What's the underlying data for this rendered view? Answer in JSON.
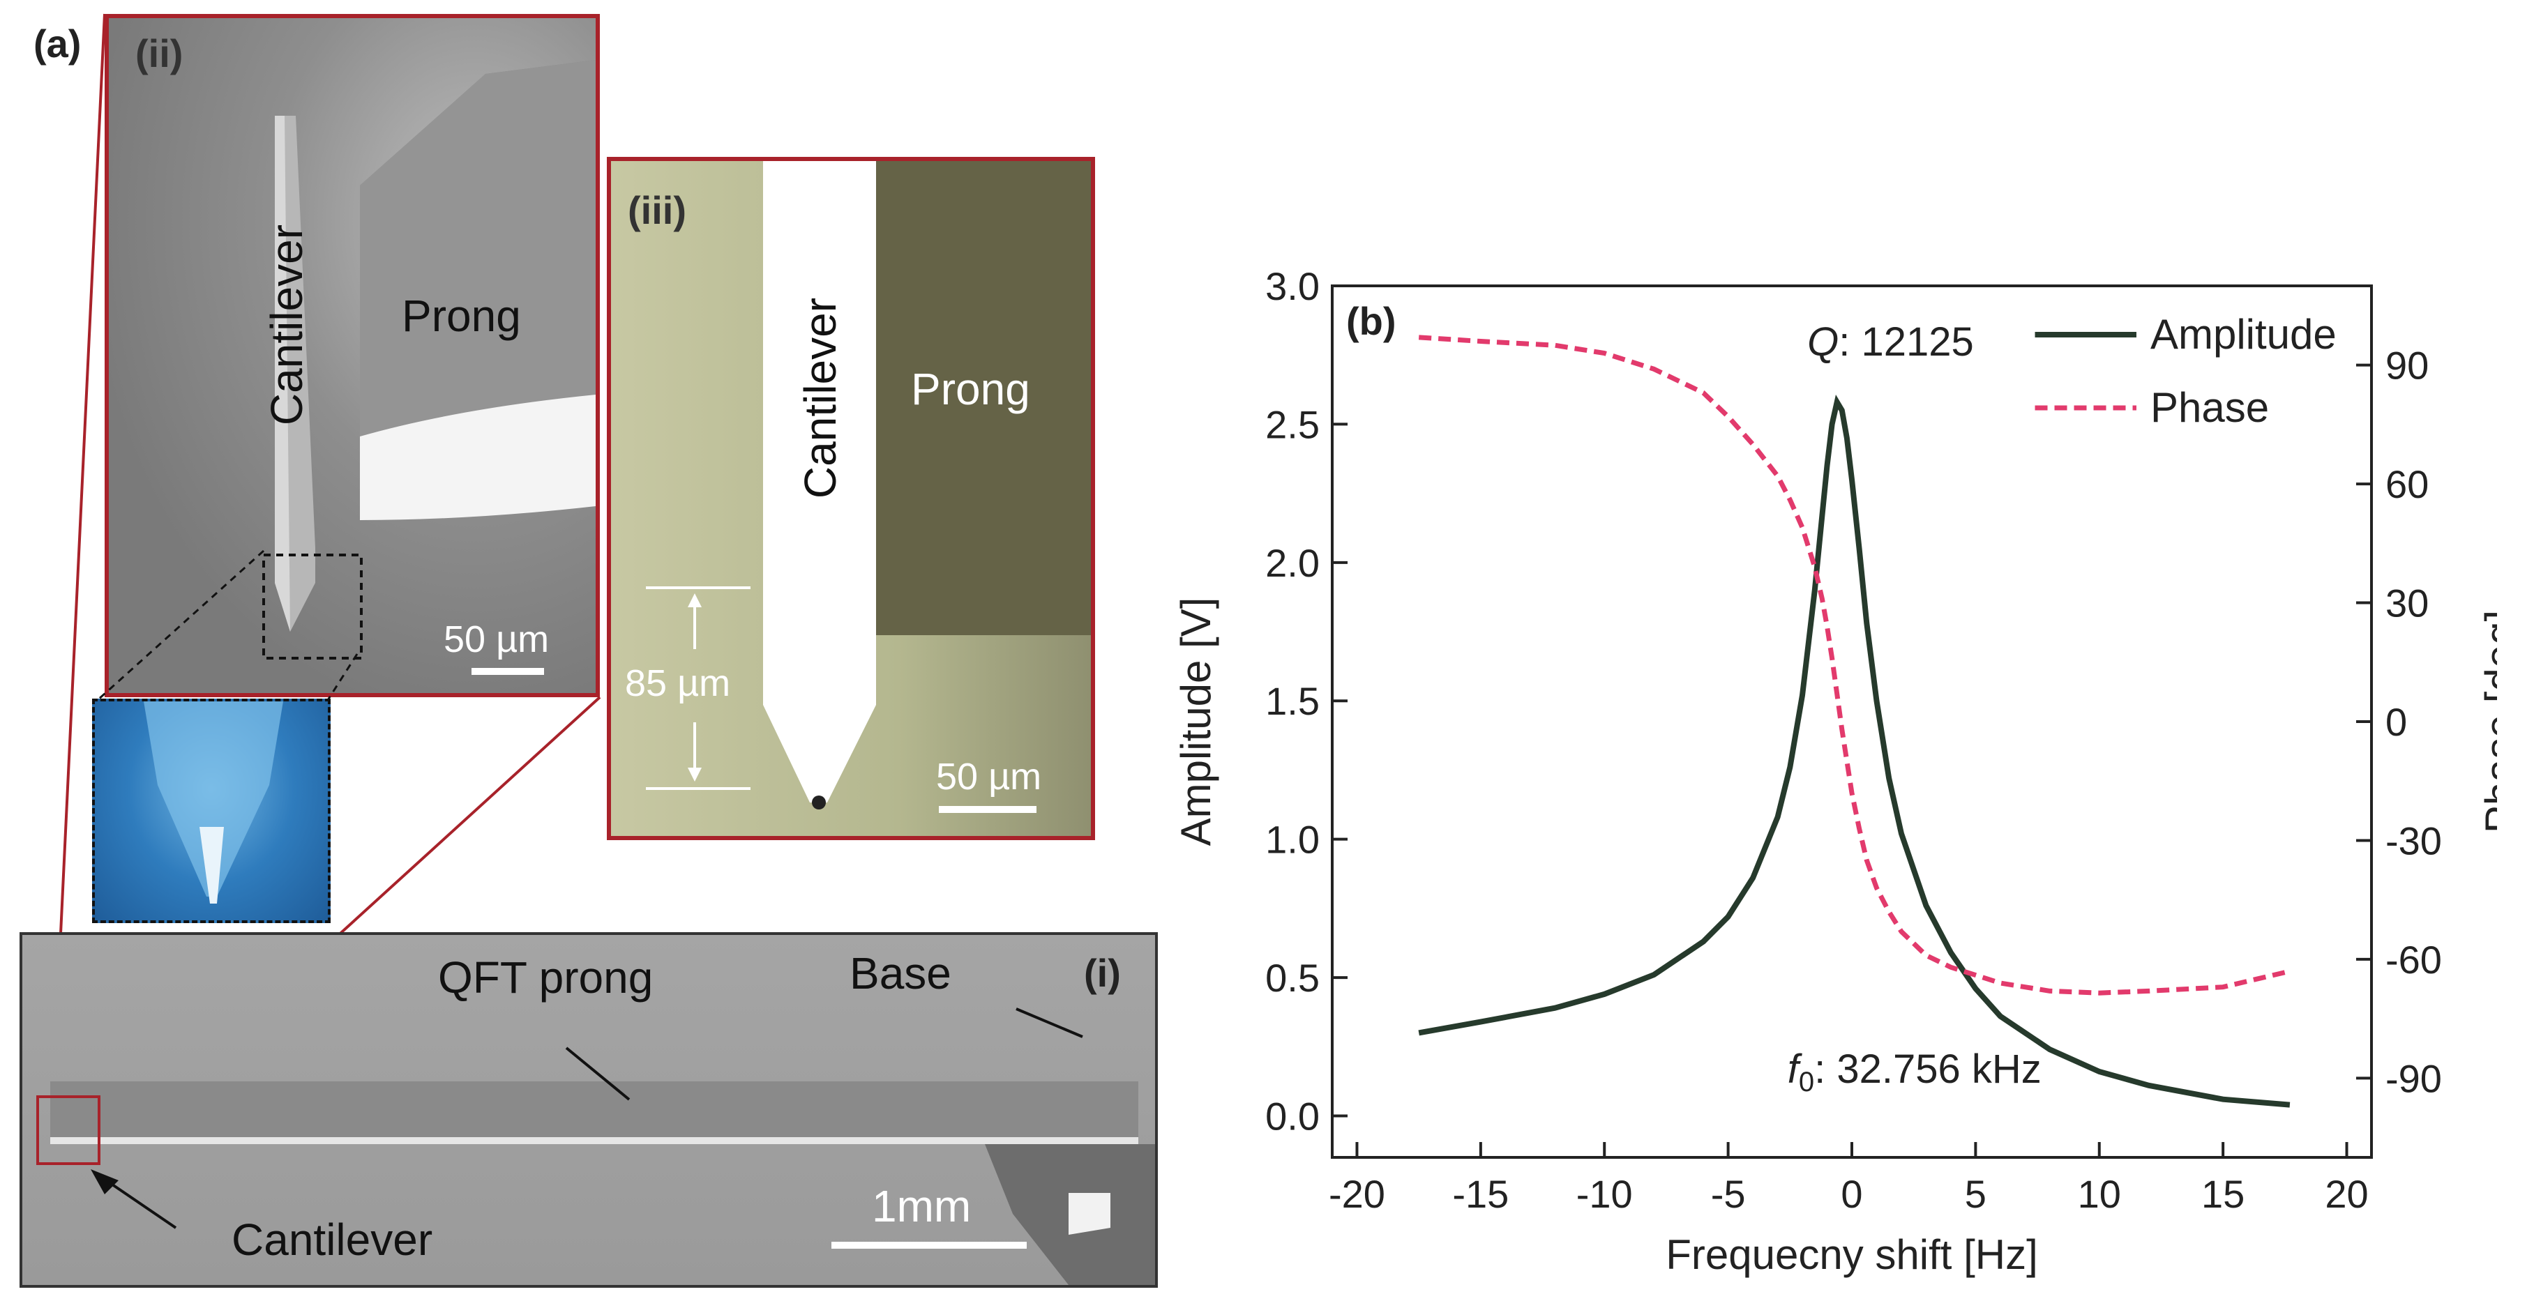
{
  "figure": {
    "panel_a_label": "(a)",
    "panel_b_label": "(b)",
    "sub_i_label": "(i)",
    "sub_ii_label": "(ii)",
    "sub_iii_label": "(iii)"
  },
  "panel_ii": {
    "cantilever_label": "Cantilever",
    "prong_label": "Prong",
    "scale_label": "50 µm"
  },
  "panel_iii": {
    "cantilever_label": "Cantilever",
    "prong_label": "Prong",
    "length_label": "85 µm",
    "scale_label": "50 µm"
  },
  "panel_i": {
    "qft_prong_label": "QFT prong",
    "base_label": "Base",
    "cantilever_label": "Cantilever",
    "scale_label": "1mm"
  },
  "colors": {
    "frame": "#a8222a",
    "amplitude": "#263a2c",
    "phase": "#e23a6c"
  },
  "chart_data": {
    "type": "line",
    "xlabel": "Frequecny shift [Hz]",
    "ylabel_left": "Amplitude [V]",
    "ylabel_right": "Phase [deg]",
    "xlim": [
      -21,
      21
    ],
    "ylim_left": [
      -0.15,
      3.0
    ],
    "ylim_right": [
      -110,
      110
    ],
    "x_ticks": [
      -20,
      -15,
      -10,
      -5,
      0,
      5,
      10,
      15,
      20
    ],
    "x_tick_labels": [
      "-20",
      "-15",
      "-10",
      "-5",
      "0",
      "5",
      "10",
      "15",
      "20"
    ],
    "y_left_ticks": [
      0.0,
      0.5,
      1.0,
      1.5,
      2.0,
      2.5,
      3.0
    ],
    "y_left_tick_labels": [
      "0.0",
      "0.5",
      "1.0",
      "1.5",
      "2.0",
      "2.5",
      "3.0"
    ],
    "y_right_ticks": [
      -90,
      -60,
      -30,
      0,
      30,
      60,
      90
    ],
    "y_right_tick_labels": [
      "-90",
      "-60",
      "-30",
      "0",
      "30",
      "60",
      "90"
    ],
    "legend": [
      "Amplitude",
      "Phase"
    ],
    "legend_position": "top-right",
    "annotations": {
      "q_symbol": "Q",
      "q_value": ": 12125",
      "f_symbol": "f",
      "f_subscript": "0",
      "f_value": ": 32.756 kHz"
    },
    "series": [
      {
        "name": "Amplitude",
        "axis": "left",
        "style": "solid",
        "x": [
          -17.5,
          -15,
          -12,
          -10,
          -8,
          -6,
          -5,
          -4,
          -3,
          -2.5,
          -2,
          -1.5,
          -1.2,
          -1.0,
          -0.8,
          -0.6,
          -0.4,
          -0.2,
          0,
          0.3,
          0.6,
          1.0,
          1.5,
          2,
          3,
          4,
          5,
          6,
          8,
          10,
          12,
          15,
          17.7
        ],
        "values": [
          0.3,
          0.34,
          0.39,
          0.44,
          0.51,
          0.63,
          0.72,
          0.86,
          1.08,
          1.26,
          1.52,
          1.9,
          2.17,
          2.35,
          2.5,
          2.58,
          2.55,
          2.45,
          2.3,
          2.05,
          1.78,
          1.5,
          1.22,
          1.02,
          0.76,
          0.59,
          0.46,
          0.36,
          0.24,
          0.16,
          0.11,
          0.06,
          0.04
        ]
      },
      {
        "name": "Phase",
        "axis": "right",
        "style": "dashed",
        "x": [
          -17.5,
          -15,
          -12,
          -10,
          -8,
          -6,
          -5,
          -4,
          -3,
          -2.5,
          -2,
          -1.5,
          -1.2,
          -1.0,
          -0.8,
          -0.6,
          -0.4,
          -0.2,
          0,
          0.3,
          0.6,
          1.0,
          1.5,
          2,
          3,
          4,
          5,
          6,
          8,
          10,
          12,
          15,
          17.7
        ],
        "values": [
          97,
          96,
          95,
          93,
          89,
          83,
          77,
          70,
          62,
          56,
          49,
          39,
          31,
          24,
          16,
          7,
          -2,
          -10,
          -18,
          -27,
          -35,
          -42,
          -48,
          -53,
          -59,
          -62,
          -64,
          -66,
          -68,
          -68.5,
          -68,
          -67,
          -63
        ]
      }
    ]
  }
}
